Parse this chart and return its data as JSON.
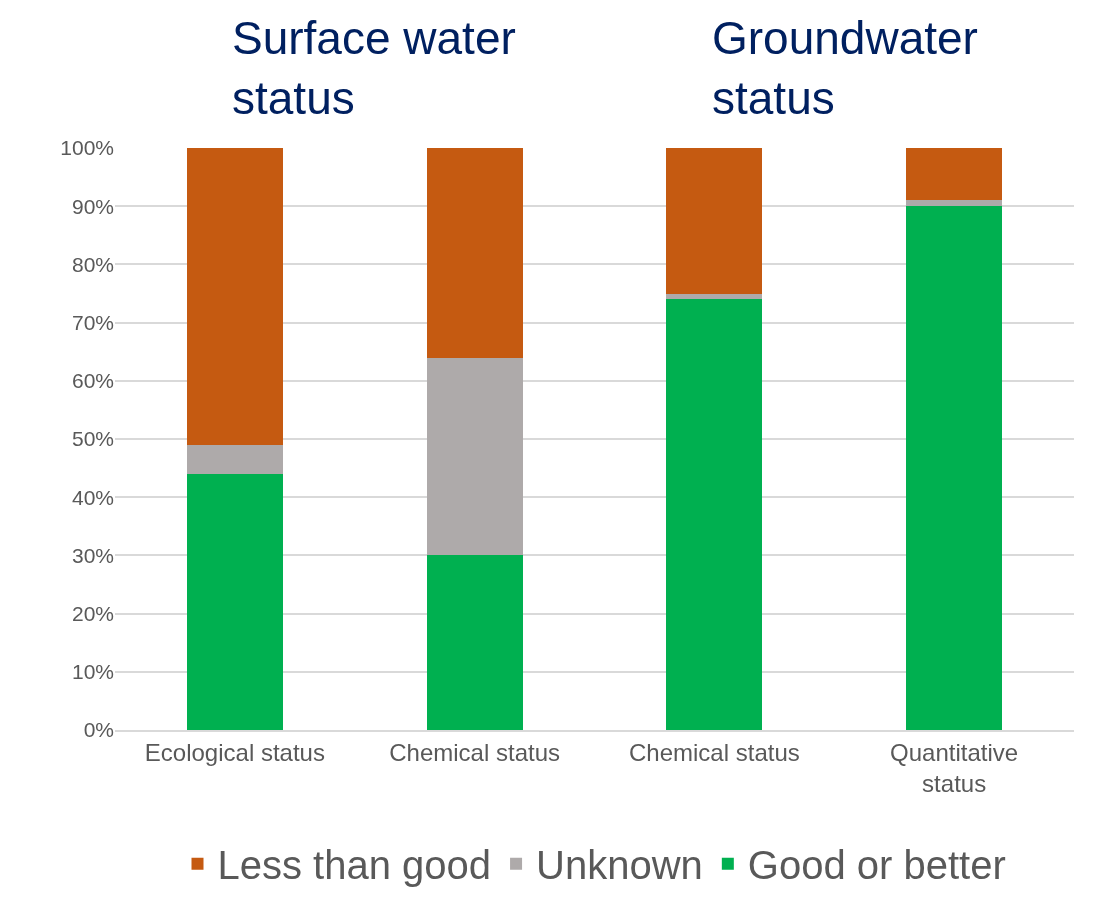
{
  "chart_data": {
    "type": "bar",
    "stacked": true,
    "categories": [
      "Ecological status",
      "Chemical status",
      "Chemical status",
      "Quantitative status"
    ],
    "series": [
      {
        "name": "Good or better",
        "color": "#00b050",
        "values": [
          44,
          30,
          74,
          90
        ]
      },
      {
        "name": "Unknown",
        "color": "#aeaaaa",
        "values": [
          5,
          34,
          1,
          1
        ]
      },
      {
        "name": "Less than good",
        "color": "#c55a11",
        "values": [
          51,
          36,
          25,
          9
        ]
      }
    ],
    "ylim": [
      0,
      100
    ],
    "yticks": [
      {
        "value": 0,
        "label": "0%"
      },
      {
        "value": 10,
        "label": "10%"
      },
      {
        "value": 20,
        "label": "20%"
      },
      {
        "value": 30,
        "label": "30%"
      },
      {
        "value": 40,
        "label": "40%"
      },
      {
        "value": 50,
        "label": "50%"
      },
      {
        "value": 60,
        "label": "60%"
      },
      {
        "value": 70,
        "label": "70%"
      },
      {
        "value": 80,
        "label": "80%"
      },
      {
        "value": 90,
        "label": "90%"
      },
      {
        "value": 100,
        "label": "100%"
      }
    ],
    "annotations": [
      "Surface water status",
      "Groundwater status"
    ],
    "grid": "y",
    "legend": "bottom"
  }
}
